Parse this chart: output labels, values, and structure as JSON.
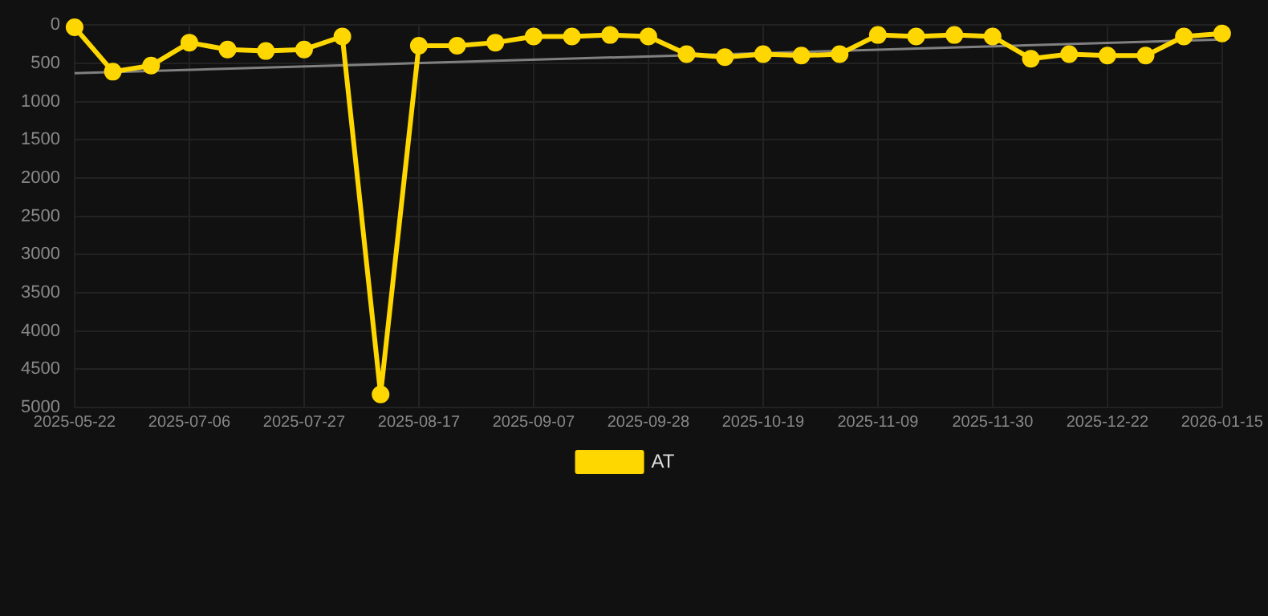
{
  "chart_data": {
    "type": "line",
    "categories": [
      "2025-05-22",
      null,
      null,
      "2025-07-06",
      null,
      null,
      "2025-07-27",
      null,
      null,
      "2025-08-17",
      null,
      null,
      "2025-09-07",
      null,
      null,
      "2025-09-28",
      null,
      null,
      "2025-10-19",
      null,
      null,
      "2025-11-09",
      null,
      null,
      "2025-11-30",
      null,
      null,
      "2025-12-22",
      null,
      null,
      "2026-01-15"
    ],
    "series": [
      {
        "name": "AT",
        "color": "#ffd700",
        "marker": "circle",
        "values": [
          30,
          610,
          530,
          230,
          320,
          340,
          320,
          150,
          4830,
          270,
          270,
          230,
          150,
          150,
          130,
          150,
          380,
          420,
          380,
          400,
          380,
          130,
          150,
          130,
          150,
          440,
          380,
          400,
          400,
          150,
          110
        ]
      },
      {
        "type": "line",
        "color": "#808080",
        "marker": "none",
        "values": [
          630,
          null,
          null,
          null,
          null,
          null,
          null,
          null,
          null,
          null,
          null,
          null,
          null,
          null,
          null,
          null,
          null,
          null,
          null,
          null,
          null,
          null,
          null,
          null,
          null,
          null,
          null,
          null,
          null,
          null,
          190
        ]
      }
    ],
    "ylim": [
      5000,
      0
    ],
    "yticks": [
      0,
      500,
      1000,
      1500,
      2000,
      2500,
      3000,
      3500,
      4000,
      4500,
      5000
    ],
    "grid": true,
    "legend": "bottom"
  }
}
